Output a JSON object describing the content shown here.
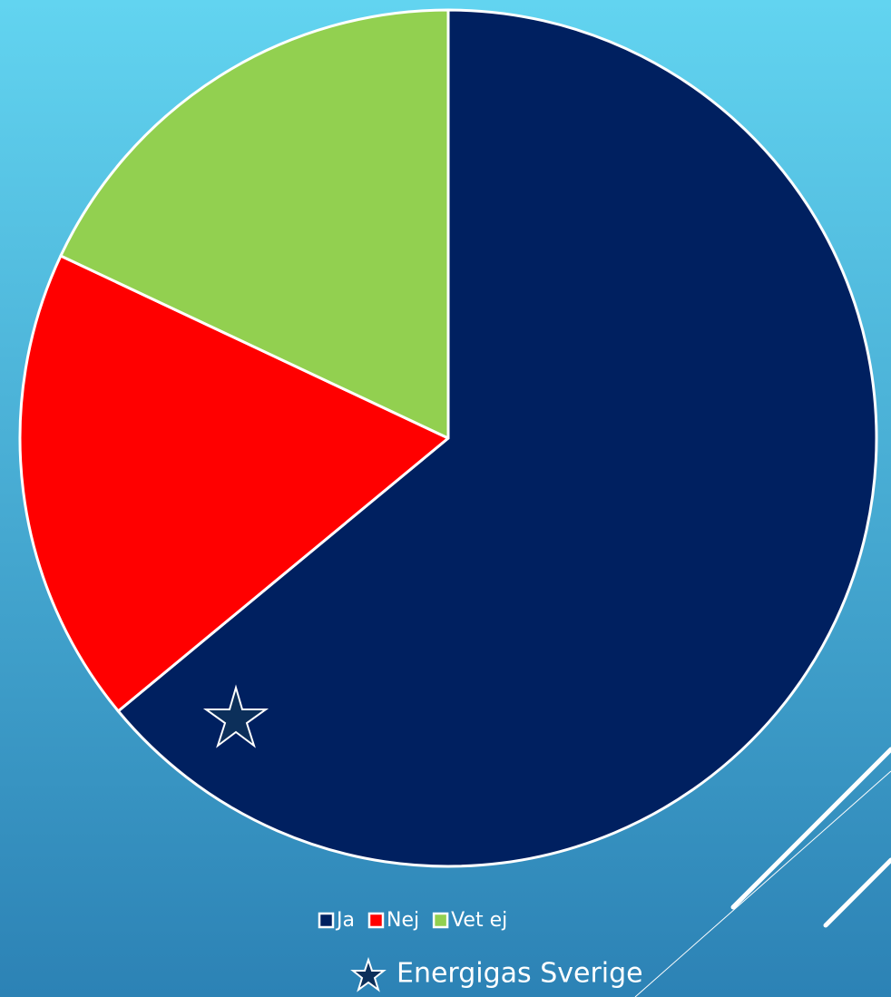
{
  "chart_data": {
    "type": "pie",
    "categories": [
      "Ja",
      "Nej",
      "Vet ej"
    ],
    "values": [
      64,
      18,
      18
    ],
    "colors": [
      "#002060",
      "#ff0000",
      "#92d050"
    ],
    "legend": "bottom"
  },
  "footer": {
    "text": "Energigas Sverige"
  }
}
